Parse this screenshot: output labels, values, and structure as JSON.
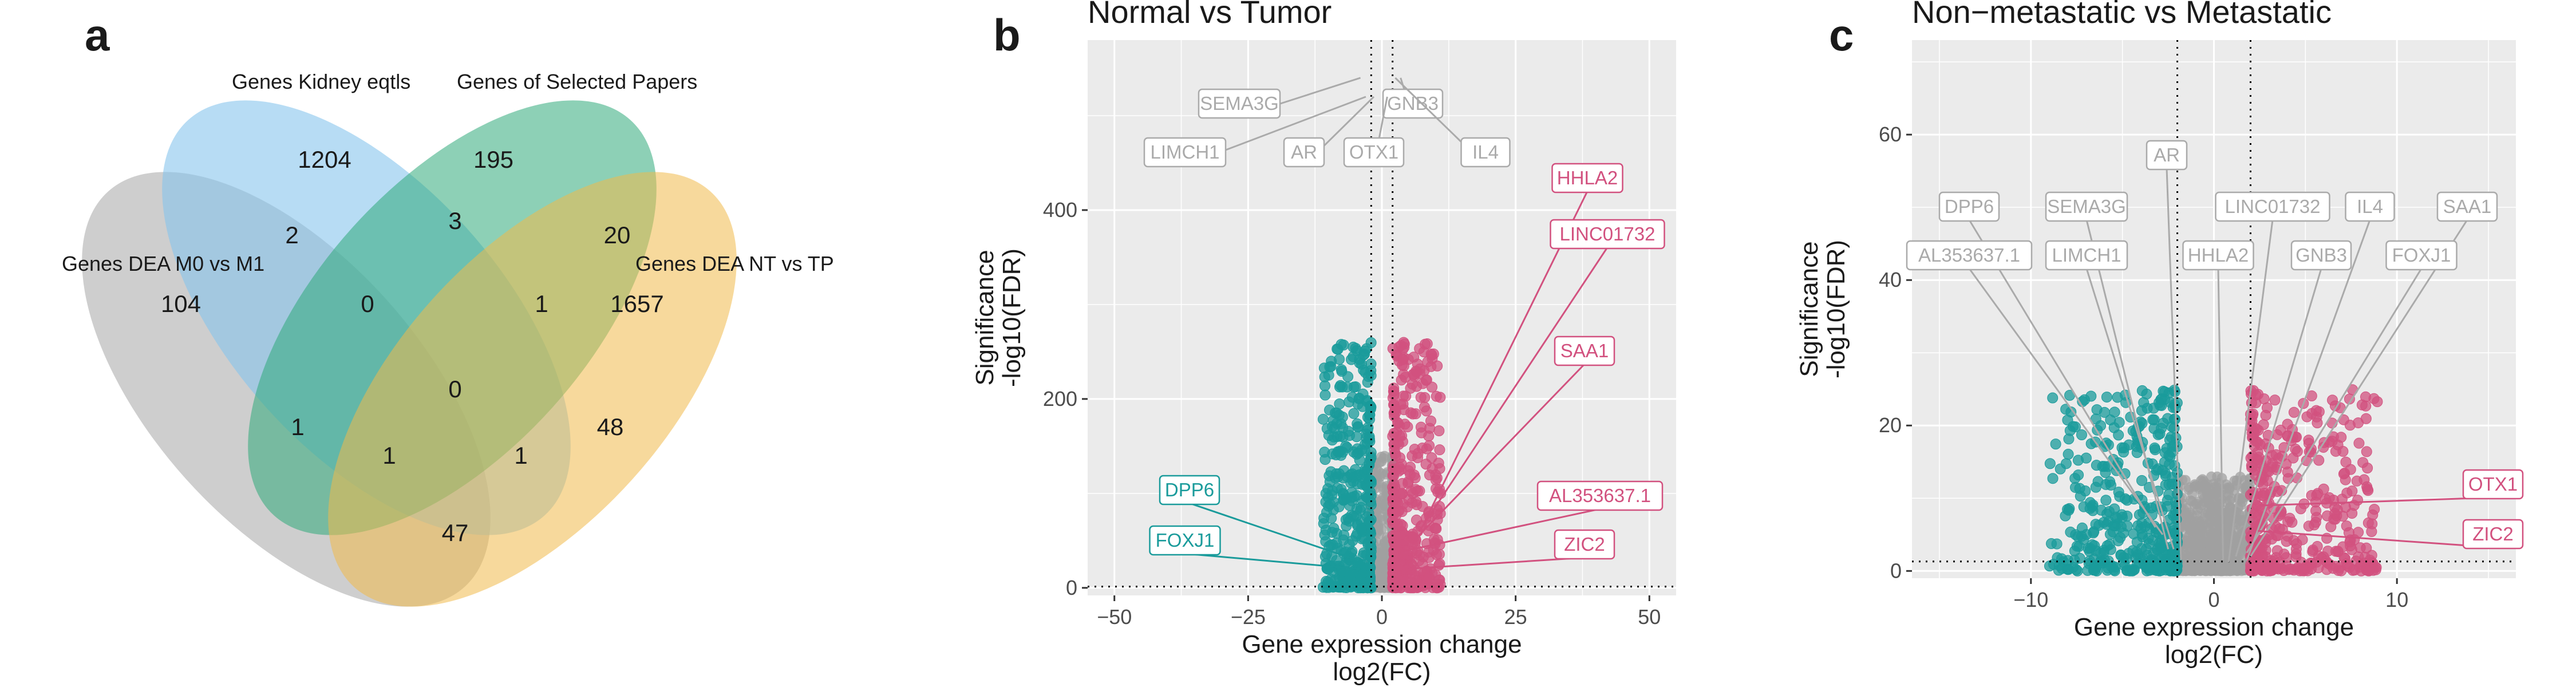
{
  "panels": {
    "a": "a",
    "b": "b",
    "c": "c"
  },
  "venn": {
    "sets": [
      {
        "name": "Genes DEA M0 vs M1",
        "color": "#9e9e9e"
      },
      {
        "name": "Genes Kidney eqtls",
        "color": "#87c4ec"
      },
      {
        "name": "Genes of Selected Papers",
        "color": "#2fa97a"
      },
      {
        "name": "Genes DEA NT vs TP",
        "color": "#f0b94a"
      }
    ],
    "regions": [
      {
        "sets": "A",
        "count": "104"
      },
      {
        "sets": "B",
        "count": "1204"
      },
      {
        "sets": "C",
        "count": "195"
      },
      {
        "sets": "D",
        "count": "1657"
      },
      {
        "sets": "AB",
        "count": "2"
      },
      {
        "sets": "BC",
        "count": "3"
      },
      {
        "sets": "CD",
        "count": "20"
      },
      {
        "sets": "ABC",
        "count": "0"
      },
      {
        "sets": "BCD",
        "count": "1"
      },
      {
        "sets": "ABCD",
        "count": "0"
      },
      {
        "sets": "AC",
        "count": "1"
      },
      {
        "sets": "BD",
        "count": "48"
      },
      {
        "sets": "ACD",
        "count": "1"
      },
      {
        "sets": "ABD",
        "count": "1"
      },
      {
        "sets": "AD",
        "count": "47"
      }
    ]
  },
  "chart_data": [
    {
      "type": "scatter",
      "title": "Normal vs Tumor",
      "xlabel_line1": "Gene expression change",
      "xlabel_line2": "log2(FC)",
      "ylabel_line1": "Significance",
      "ylabel_line2": "-log10(FDR)",
      "xlim": [
        -55,
        55
      ],
      "ylim": [
        -8,
        580
      ],
      "xticks": [
        -50,
        -25,
        0,
        25,
        50
      ],
      "xtick_labels": [
        "−50",
        "−25",
        "0",
        "25",
        "50"
      ],
      "yticks": [
        0,
        200,
        400
      ],
      "ytick_labels": [
        "0",
        "200",
        "400"
      ],
      "fc_threshold": [
        -2,
        2
      ],
      "fdr_threshold": 1.3,
      "grid": true,
      "colors": {
        "down": "#1a9b9b",
        "up": "#d2517f",
        "ns": "#a0a0a0",
        "panel_bg": "#ebebeb"
      },
      "labels": [
        {
          "gene": "SEMA3G",
          "group": "ns",
          "x": -4.0,
          "y": 540
        },
        {
          "gene": "GNB3",
          "group": "ns",
          "x": 3.5,
          "y": 540
        },
        {
          "gene": "LIMCH1",
          "group": "ns",
          "x": -3.0,
          "y": 520
        },
        {
          "gene": "AR",
          "group": "ns",
          "x": -1.5,
          "y": 520
        },
        {
          "gene": "OTX1",
          "group": "ns",
          "x": 1.0,
          "y": 520
        },
        {
          "gene": "IL4",
          "group": "ns",
          "x": 2.5,
          "y": 540
        },
        {
          "gene": "HHLA2",
          "group": "up",
          "x": 8,
          "y": 70
        },
        {
          "gene": "LINC01732",
          "group": "up",
          "x": 7,
          "y": 60
        },
        {
          "gene": "SAA1",
          "group": "up",
          "x": 6,
          "y": 50
        },
        {
          "gene": "AL353637.1",
          "group": "up",
          "x": 5,
          "y": 40
        },
        {
          "gene": "ZIC2",
          "group": "up",
          "x": 4.5,
          "y": 20
        },
        {
          "gene": "DPP6",
          "group": "down",
          "x": -5,
          "y": 30
        },
        {
          "gene": "FOXJ1",
          "group": "down",
          "x": -4,
          "y": 20
        }
      ]
    },
    {
      "type": "scatter",
      "title": "Non−metastatic vs Metastatic",
      "xlabel_line1": "Gene expression change",
      "xlabel_line2": "log2(FC)",
      "ylabel_line1": "Significance",
      "ylabel_line2": "-log10(FDR)",
      "xlim": [
        -16.5,
        16.5
      ],
      "ylim": [
        -1,
        73
      ],
      "xticks": [
        -10,
        0,
        10
      ],
      "xtick_labels": [
        "−10",
        "0",
        "10"
      ],
      "yticks": [
        0,
        20,
        40,
        60
      ],
      "ytick_labels": [
        "0",
        "20",
        "40",
        "60"
      ],
      "fc_threshold": [
        -2,
        2
      ],
      "fdr_threshold": 1.3,
      "grid": true,
      "colors": {
        "down": "#1a9b9b",
        "up": "#d2517f",
        "ns": "#a0a0a0",
        "panel_bg": "#ebebeb"
      },
      "labels": [
        {
          "gene": "AR",
          "group": "ns",
          "x": -1.8,
          "y": 1.5
        },
        {
          "gene": "DPP6",
          "group": "ns",
          "x": -3.2,
          "y": 6
        },
        {
          "gene": "SEMA3G",
          "group": "ns",
          "x": -2.5,
          "y": 3
        },
        {
          "gene": "LINC01732",
          "group": "ns",
          "x": 0.8,
          "y": 1.2
        },
        {
          "gene": "IL4",
          "group": "ns",
          "x": 1.8,
          "y": 1.5
        },
        {
          "gene": "SAA1",
          "group": "ns",
          "x": 2.0,
          "y": 2.0
        },
        {
          "gene": "AL353637.1",
          "group": "ns",
          "x": -2.8,
          "y": 5
        },
        {
          "gene": "LIMCH1",
          "group": "ns",
          "x": -2.2,
          "y": 3
        },
        {
          "gene": "HHLA2",
          "group": "ns",
          "x": 0.5,
          "y": 1.5
        },
        {
          "gene": "GNB3",
          "group": "ns",
          "x": 1.2,
          "y": 2.0
        },
        {
          "gene": "FOXJ1",
          "group": "ns",
          "x": 1.8,
          "y": 2.5
        },
        {
          "gene": "OTX1",
          "group": "up",
          "x": 2.5,
          "y": 9
        },
        {
          "gene": "ZIC2",
          "group": "up",
          "x": 2.4,
          "y": 5.5
        }
      ]
    }
  ]
}
